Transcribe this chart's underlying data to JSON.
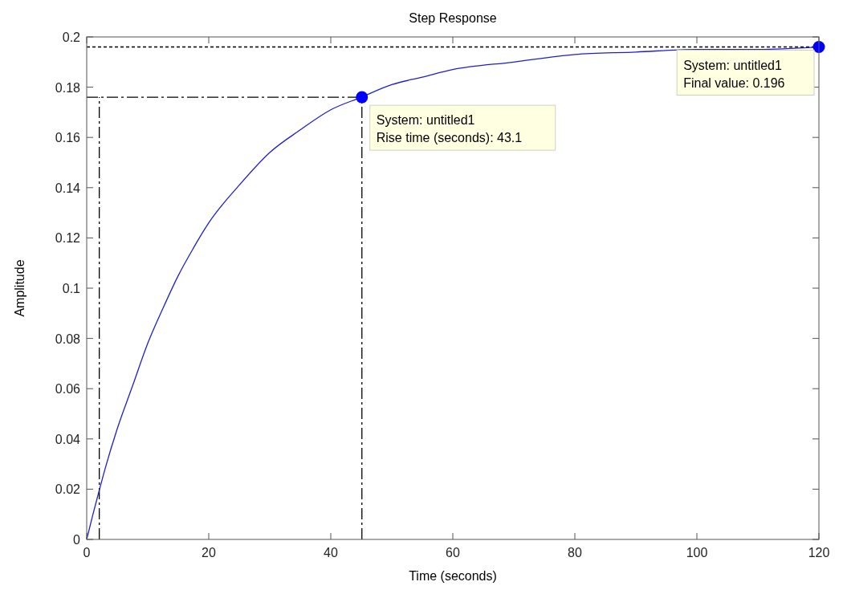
{
  "chart_data": {
    "type": "line",
    "title": "Step Response",
    "xlabel": "Time (seconds)",
    "ylabel": "Amplitude",
    "xlim": [
      0,
      120
    ],
    "ylim": [
      0,
      0.2
    ],
    "xticks": [
      0,
      20,
      40,
      60,
      80,
      100,
      120
    ],
    "yticks": [
      0,
      0.02,
      0.04,
      0.06,
      0.08,
      0.1,
      0.12,
      0.14,
      0.16,
      0.18,
      0.2
    ],
    "grid": false,
    "series": [
      {
        "color": "#1f1fd0",
        "line_style": "solid",
        "marker": "none",
        "x": [
          0,
          1,
          2,
          3,
          5,
          7.5,
          10,
          12.5,
          15,
          17.5,
          20,
          25,
          30,
          35,
          40,
          45,
          50,
          55,
          60,
          70,
          80,
          90,
          100,
          110,
          120
        ],
        "values": [
          0,
          0.0098,
          0.019,
          0.028,
          0.044,
          0.061,
          0.078,
          0.092,
          0.105,
          0.116,
          0.126,
          0.141,
          0.154,
          0.163,
          0.171,
          0.176,
          0.181,
          0.184,
          0.187,
          0.19,
          0.193,
          0.194,
          0.195,
          0.195,
          0.196
        ]
      },
      {
        "type": "scatter",
        "color": "#0000ff",
        "marker": "circle",
        "x": [
          45.1,
          120
        ],
        "values": [
          0.176,
          0.196
        ]
      }
    ],
    "ref_lines": [
      {
        "axis": "x",
        "value": 2.06,
        "line_style": "dashed",
        "color": "#000000"
      },
      {
        "axis": "x",
        "value": 45.1,
        "line_style": "dashed",
        "color": "#000000"
      },
      {
        "axis": "y",
        "value": 0.176,
        "line_style": "dashed",
        "color": "#000000"
      },
      {
        "axis": "y",
        "value": 0.196,
        "line_style": "dotted",
        "color": "#000000"
      }
    ],
    "annotations": [
      {
        "text": "System: untitled1\nRise time (seconds): 43.1",
        "x": 45.1,
        "y": 0.176
      },
      {
        "text": "System: untitled1\nFinal value: 0.196",
        "x": 120,
        "y": 0.196
      }
    ]
  }
}
